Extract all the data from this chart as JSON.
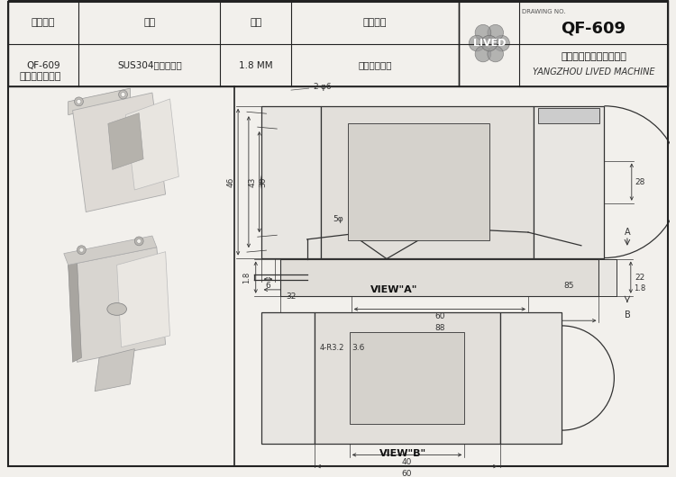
{
  "bg_color": "#f2f0ec",
  "border_color": "#222222",
  "line_color": "#333333",
  "dim_color": "#333333",
  "white": "#ffffff",
  "light_gray": "#e8e6e2",
  "mid_gray": "#c8c5c0",
  "dark_gray": "#888880",
  "title": "QF-609",
  "drawing_no_label": "DRAWING NO.",
  "company_cn": "扬州立维德机械有限公司",
  "company_en": "YANGZHOU LIVED MACHINE",
  "brand": "LIVED",
  "note": "内有高强度弹簧",
  "table_headers": [
    "产品型号",
    "材质",
    "料厚",
    "表面处理"
  ],
  "table_row": [
    "QF-609",
    "SUS304冷轧不锈锤",
    "1.8 MM",
    "光泽振动研磨"
  ],
  "view_a_label": "VIEW\"A\"",
  "view_b_label": "VIEW\"B\""
}
